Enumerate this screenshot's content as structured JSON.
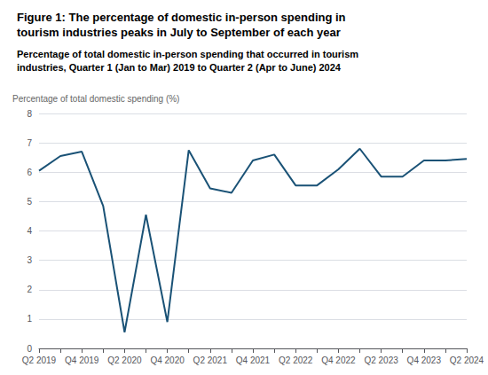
{
  "chart_data": {
    "type": "line",
    "title": "Figure 1: The percentage of domestic in-person spending in\ntourism industries peaks in July to September of each year",
    "subtitle": "Percentage of total domestic in-person spending that occurred in tourism\nindustries, Quarter 1 (Jan to Mar) 2019 to Quarter 2 (Apr to June) 2024",
    "ylabel": "Percentage of total domestic spending (%)",
    "categories": [
      "Q2 2019",
      null,
      "Q4 2019",
      null,
      "Q2 2020",
      null,
      "Q4 2020",
      null,
      "Q2 2021",
      null,
      "Q4 2021",
      null,
      "Q2 2022",
      null,
      "Q4 2022",
      null,
      "Q2 2023",
      null,
      "Q4 2023",
      null,
      "Q2 2024"
    ],
    "values": [
      6.05,
      6.55,
      6.7,
      4.85,
      0.55,
      4.55,
      0.9,
      6.75,
      5.45,
      5.3,
      6.4,
      6.6,
      5.55,
      5.55,
      6.1,
      6.8,
      5.85,
      5.85,
      6.4,
      6.4,
      6.45
    ],
    "color": "#1a5276",
    "ylim": [
      0,
      8
    ],
    "yticks": [
      0,
      1,
      2,
      3,
      4,
      5,
      6,
      7,
      8
    ],
    "grid": true
  }
}
